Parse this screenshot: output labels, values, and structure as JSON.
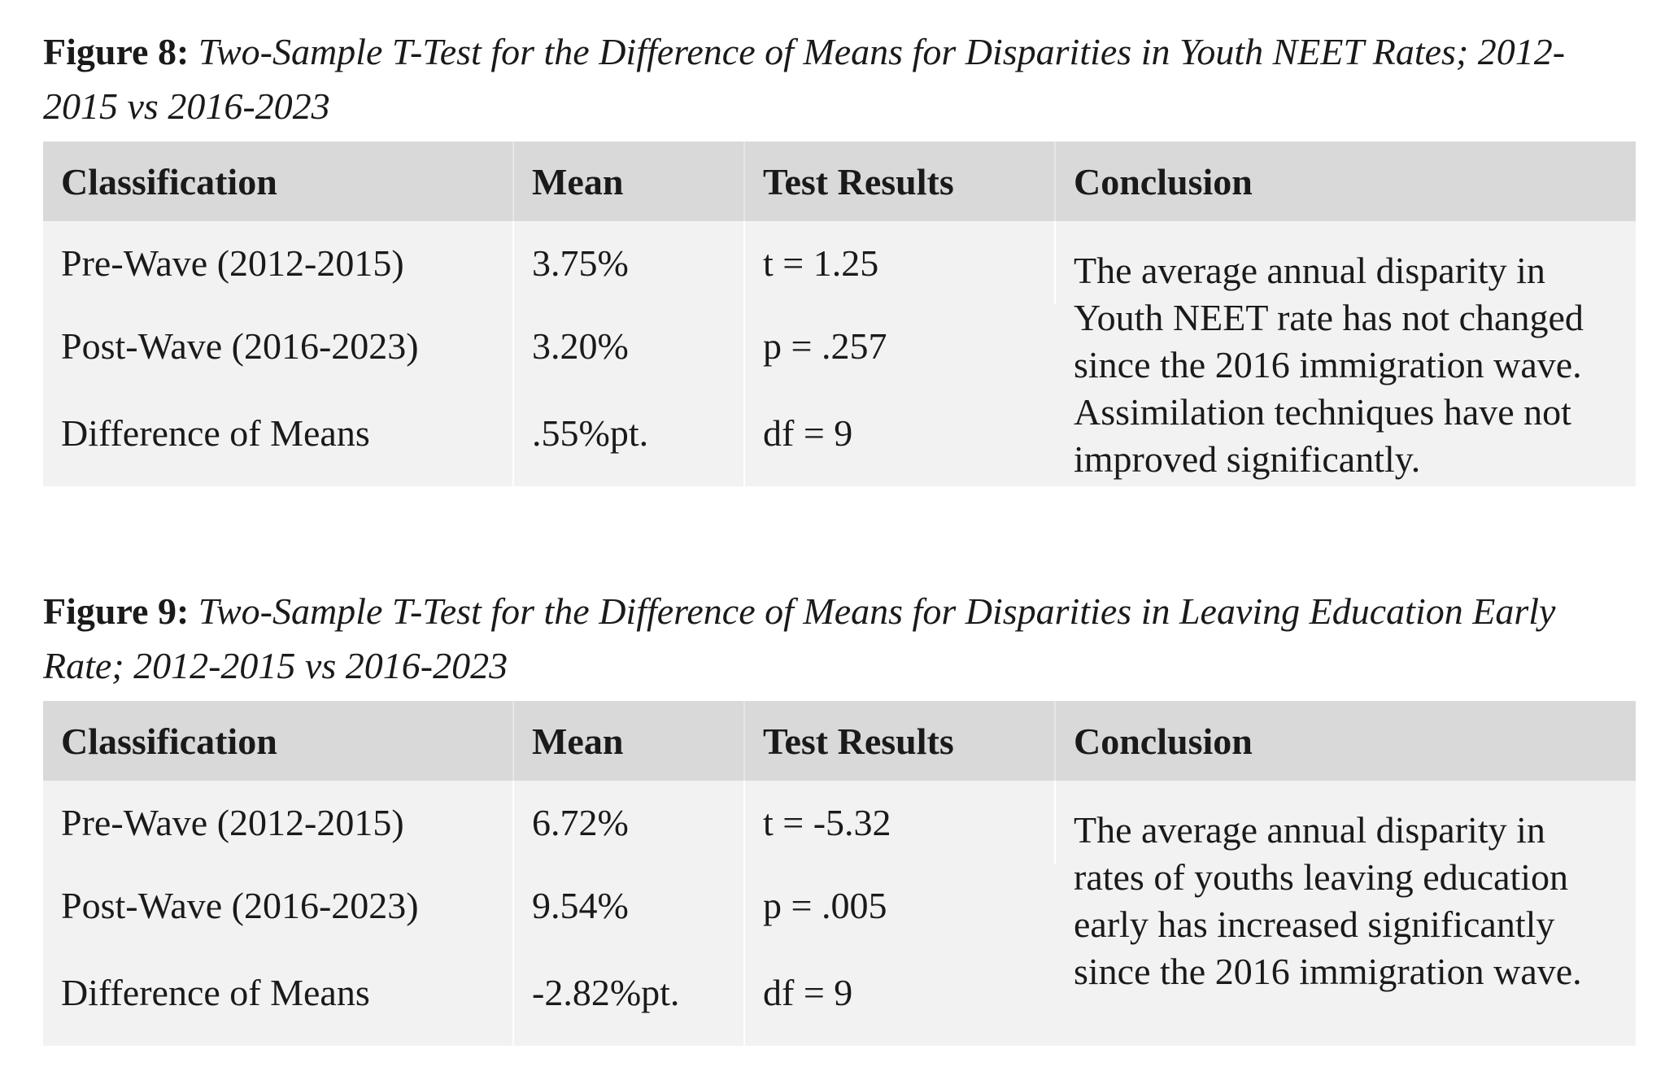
{
  "figures": [
    {
      "label": "Figure 8:",
      "description": "Two-Sample T-Test for the Difference of Means for Disparities in Youth NEET Rates; 2012-2015 vs 2016-2023",
      "headers": [
        "Classification",
        "Mean",
        "Test Results",
        "Conclusion"
      ],
      "rows": [
        {
          "classification": "Pre-Wave (2012-2015)",
          "mean": "3.75%",
          "test": "t = 1.25"
        },
        {
          "classification": "Post-Wave (2016-2023)",
          "mean": "3.20%",
          "test": "p = .257"
        },
        {
          "classification": "Difference of Means",
          "mean": ".55%pt.",
          "test": "df = 9"
        }
      ],
      "conclusion": "The average annual disparity in Youth NEET rate has not changed since the 2016 immigration wave. Assimilation techniques have not improved significantly."
    },
    {
      "label": "Figure 9:",
      "description": "Two-Sample T-Test for the Difference of Means for Disparities in Leaving Education Early Rate; 2012-2015 vs 2016-2023",
      "headers": [
        "Classification",
        "Mean",
        "Test Results",
        "Conclusion"
      ],
      "rows": [
        {
          "classification": "Pre-Wave (2012-2015)",
          "mean": "6.72%",
          "test": "t = -5.32"
        },
        {
          "classification": "Post-Wave (2016-2023)",
          "mean": "9.54%",
          "test": "p = .005"
        },
        {
          "classification": "Difference of Means",
          "mean": "-2.82%pt.",
          "test": "df = 9"
        }
      ],
      "conclusion": "The average annual disparity in rates of youths leaving education early has increased significantly since the 2016 immigration wave."
    }
  ]
}
